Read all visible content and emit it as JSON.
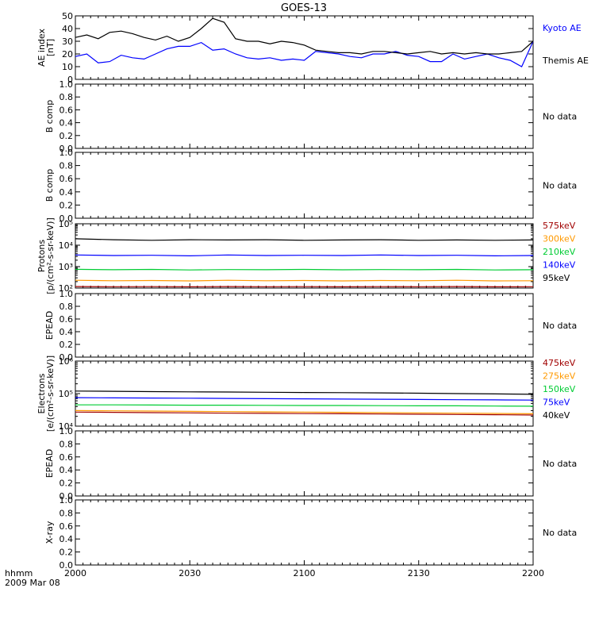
{
  "title": "GOES-13",
  "time_axis": {
    "label": "hhmm",
    "date": "2009 Mar 08",
    "ticks": [
      "2000",
      "2030",
      "2100",
      "2130",
      "2200"
    ]
  },
  "colors": {
    "frame": "#000000",
    "black": "#000000",
    "blue": "#0000ff",
    "green": "#00cc33",
    "orange": "#ff9900",
    "dark_red": "#a00000"
  },
  "chart_data": [
    {
      "type": "line",
      "name": "ae-index",
      "ylabel": [
        "AE index",
        "[nT]"
      ],
      "ylim": [
        0,
        50
      ],
      "yticks": [
        "0",
        "10",
        "20",
        "30",
        "40",
        "50"
      ],
      "legend": [
        "Kyoto AE",
        "Themis AE"
      ],
      "legend_colors": [
        "#0000ff",
        "#000000"
      ],
      "x_range": [
        0,
        120
      ],
      "series": [
        {
          "name": "Kyoto AE",
          "color": "#0000ff",
          "x": [
            0,
            3,
            6,
            9,
            12,
            15,
            18,
            21,
            24,
            27,
            30,
            33,
            36,
            39,
            42,
            45,
            48,
            51,
            54,
            57,
            60,
            63,
            66,
            69,
            72,
            75,
            78,
            81,
            84,
            87,
            90,
            93,
            96,
            99,
            102,
            105,
            108,
            111,
            114,
            117,
            120
          ],
          "y": [
            18,
            20,
            13,
            14,
            19,
            17,
            16,
            20,
            24,
            26,
            26,
            29,
            23,
            24,
            20,
            17,
            16,
            17,
            15,
            16,
            15,
            22,
            21,
            20,
            18,
            17,
            20,
            20,
            22,
            19,
            18,
            14,
            14,
            20,
            16,
            18,
            20,
            17,
            15,
            10,
            30
          ]
        },
        {
          "name": "Themis AE",
          "color": "#000000",
          "x": [
            0,
            3,
            6,
            9,
            12,
            15,
            18,
            21,
            24,
            27,
            30,
            33,
            36,
            39,
            42,
            45,
            48,
            51,
            54,
            57,
            60,
            63,
            66,
            69,
            72,
            75,
            78,
            81,
            84,
            87,
            90,
            93,
            96,
            99,
            102,
            105,
            108,
            111,
            114,
            117,
            120
          ],
          "y": [
            33,
            35,
            32,
            37,
            38,
            36,
            33,
            31,
            34,
            30,
            33,
            40,
            48,
            45,
            32,
            30,
            30,
            28,
            30,
            29,
            27,
            23,
            22,
            21,
            21,
            20,
            22,
            22,
            21,
            20,
            21,
            22,
            20,
            21,
            20,
            21,
            20,
            20,
            21,
            22,
            30
          ]
        }
      ]
    },
    {
      "type": "line",
      "name": "b-comp-1",
      "ylabel": [
        "B comp"
      ],
      "ylim": [
        0,
        1
      ],
      "yticks": [
        "0.0",
        "0.2",
        "0.4",
        "0.6",
        "0.8",
        "1.0"
      ],
      "status": "No data",
      "series": []
    },
    {
      "type": "line",
      "name": "b-comp-2",
      "ylabel": [
        "B comp"
      ],
      "ylim": [
        0,
        1
      ],
      "yticks": [
        "0.0",
        "0.2",
        "0.4",
        "0.6",
        "0.8",
        "1.0"
      ],
      "status": "No data",
      "series": []
    },
    {
      "type": "line",
      "name": "protons",
      "ylabel": [
        "Protons",
        "[p/(cm²-s-sr-keV)]"
      ],
      "scale": "log",
      "ylim": [
        100,
        100000
      ],
      "yticks": [
        "10²",
        "10³",
        "10⁴",
        "10⁵"
      ],
      "legend": [
        "575keV",
        "300keV",
        "210keV",
        "140keV",
        "95keV"
      ],
      "legend_colors": [
        "#a00000",
        "#ff9900",
        "#00cc33",
        "#0000ff",
        "#000000"
      ],
      "x_range": [
        0,
        120
      ],
      "series": [
        {
          "name": "95keV",
          "color": "#000000",
          "x": [
            0,
            10,
            20,
            30,
            40,
            50,
            60,
            70,
            80,
            90,
            100,
            110,
            120
          ],
          "y": [
            20000,
            18000,
            17000,
            18000,
            17500,
            18000,
            17000,
            17500,
            18000,
            17000,
            17500,
            17000,
            17500
          ]
        },
        {
          "name": "140keV",
          "color": "#0000ff",
          "x": [
            0,
            10,
            20,
            30,
            40,
            50,
            60,
            70,
            80,
            90,
            100,
            110,
            120
          ],
          "y": [
            3500,
            3300,
            3400,
            3200,
            3500,
            3300,
            3400,
            3300,
            3500,
            3300,
            3400,
            3200,
            3300
          ]
        },
        {
          "name": "210keV",
          "color": "#00cc33",
          "x": [
            0,
            10,
            20,
            30,
            40,
            50,
            60,
            70,
            80,
            90,
            100,
            110,
            120
          ],
          "y": [
            750,
            720,
            740,
            700,
            730,
            720,
            740,
            710,
            730,
            720,
            740,
            700,
            720
          ]
        },
        {
          "name": "300keV",
          "color": "#ff9900",
          "x": [
            0,
            10,
            20,
            30,
            40,
            50,
            60,
            70,
            80,
            90,
            100,
            110,
            120
          ],
          "y": [
            230,
            220,
            225,
            215,
            230,
            220,
            225,
            215,
            225,
            220,
            230,
            215,
            220
          ]
        },
        {
          "name": "575keV",
          "color": "#a00000",
          "x": [
            0,
            10,
            20,
            30,
            40,
            50,
            60,
            70,
            80,
            90,
            100,
            110,
            120
          ],
          "y": [
            118,
            116,
            117,
            115,
            118,
            116,
            117,
            115,
            117,
            116,
            118,
            115,
            116
          ]
        }
      ]
    },
    {
      "type": "line",
      "name": "epead-1",
      "ylabel": [
        "EPEAD"
      ],
      "ylim": [
        0,
        1
      ],
      "yticks": [
        "0.0",
        "0.2",
        "0.4",
        "0.6",
        "0.8",
        "1.0"
      ],
      "status": "No data",
      "series": []
    },
    {
      "type": "line",
      "name": "electrons",
      "ylabel": [
        "Electrons",
        "[e/(cm²-s-sr-keV)]"
      ],
      "scale": "log",
      "ylim": [
        10000,
        1000000
      ],
      "yticks": [
        "10⁴",
        "10⁵",
        "10⁶"
      ],
      "legend": [
        "475keV",
        "275keV",
        "150keV",
        "75keV",
        "40keV"
      ],
      "legend_colors": [
        "#a00000",
        "#ff9900",
        "#00cc33",
        "#0000ff",
        "#000000"
      ],
      "x_range": [
        0,
        120
      ],
      "series": [
        {
          "name": "40keV",
          "color": "#000000",
          "x": [
            0,
            10,
            20,
            30,
            40,
            50,
            60,
            70,
            80,
            90,
            100,
            110,
            120
          ],
          "y": [
            120000,
            118000,
            115000,
            113000,
            112000,
            110000,
            108000,
            107000,
            105000,
            103000,
            100000,
            98000,
            95000
          ]
        },
        {
          "name": "75keV",
          "color": "#0000ff",
          "x": [
            0,
            10,
            20,
            30,
            40,
            50,
            60,
            70,
            80,
            90,
            100,
            110,
            120
          ],
          "y": [
            75000,
            74000,
            73000,
            72000,
            71000,
            70000,
            69000,
            68000,
            67000,
            66000,
            65000,
            64000,
            63000
          ]
        },
        {
          "name": "150keV",
          "color": "#00cc33",
          "x": [
            0,
            10,
            20,
            30,
            40,
            50,
            60,
            70,
            80,
            90,
            100,
            110,
            120
          ],
          "y": [
            45000,
            45000,
            44500,
            44000,
            44000,
            43500,
            43000,
            43000,
            42500,
            42000,
            42000,
            41500,
            41000
          ]
        },
        {
          "name": "275keV",
          "color": "#ff9900",
          "x": [
            0,
            10,
            20,
            30,
            40,
            50,
            60,
            70,
            80,
            90,
            100,
            110,
            120
          ],
          "y": [
            30000,
            29500,
            29000,
            28500,
            28000,
            27500,
            27000,
            26500,
            26000,
            25500,
            25000,
            24500,
            24000
          ]
        },
        {
          "name": "475keV",
          "color": "#a00000",
          "x": [
            0,
            10,
            20,
            30,
            40,
            50,
            60,
            70,
            80,
            90,
            100,
            110,
            120
          ],
          "y": [
            27000,
            26500,
            26000,
            25500,
            25000,
            24700,
            24300,
            24000,
            23600,
            23200,
            22800,
            22400,
            22000
          ]
        }
      ]
    },
    {
      "type": "line",
      "name": "epead-2",
      "ylabel": [
        "EPEAD"
      ],
      "ylim": [
        0,
        1
      ],
      "yticks": [
        "0.0",
        "0.2",
        "0.4",
        "0.6",
        "0.8",
        "1.0"
      ],
      "status": "No data",
      "series": []
    },
    {
      "type": "line",
      "name": "x-ray",
      "ylabel": [
        "X-ray"
      ],
      "ylim": [
        0,
        1
      ],
      "yticks": [
        "0.0",
        "0.2",
        "0.4",
        "0.6",
        "0.8",
        "1.0"
      ],
      "status": "No data",
      "series": []
    }
  ]
}
